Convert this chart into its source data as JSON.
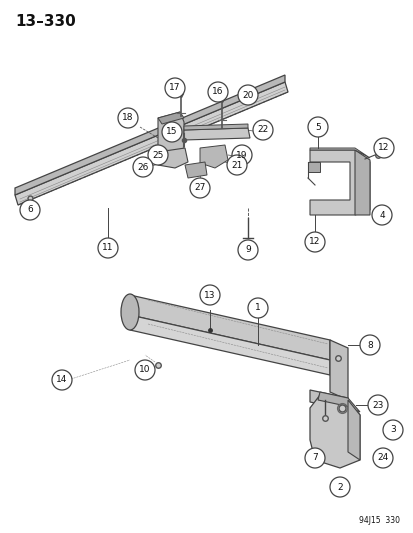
{
  "title": "13–330",
  "footer": "94J15  330",
  "bg_color": "#ffffff",
  "line_color": "#444444",
  "circle_color": "#ffffff",
  "circle_edge": "#444444",
  "text_color": "#111111",
  "figsize": [
    4.14,
    5.33
  ],
  "dpi": 100
}
